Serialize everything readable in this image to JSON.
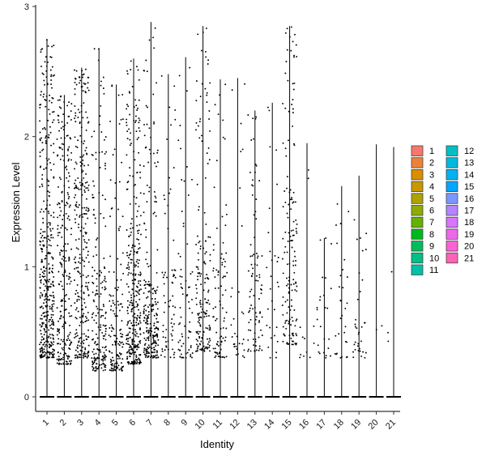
{
  "chart_data": {
    "type": "violin",
    "xlabel": "Identity",
    "ylabel": "Expression Level",
    "ylim": [
      0,
      3
    ],
    "yticks": [
      0,
      1,
      2,
      3
    ],
    "categories": [
      "1",
      "2",
      "3",
      "4",
      "5",
      "6",
      "7",
      "8",
      "9",
      "10",
      "11",
      "12",
      "13",
      "14",
      "15",
      "16",
      "17",
      "18",
      "19",
      "20",
      "21"
    ],
    "max_values": [
      2.75,
      2.32,
      2.53,
      2.68,
      2.4,
      2.6,
      2.88,
      2.48,
      2.61,
      2.85,
      2.44,
      2.45,
      2.2,
      2.26,
      2.85,
      1.95,
      1.22,
      1.62,
      1.7,
      1.94,
      1.92
    ],
    "dense_range": [
      [
        0.3,
        1.4
      ],
      [
        0.25,
        1.6
      ],
      [
        0.3,
        1.7
      ],
      [
        0.2,
        1.0
      ],
      [
        0.2,
        0.8
      ],
      [
        0.25,
        1.2
      ],
      [
        0.3,
        0.9
      ],
      [
        0.3,
        1.0
      ],
      [
        0.3,
        0.9
      ],
      [
        0.35,
        1.3
      ],
      [
        0.3,
        1.2
      ],
      [
        0.3,
        1.0
      ],
      [
        0.35,
        1.2
      ],
      [
        0.3,
        1.2
      ],
      [
        0.4,
        1.6
      ],
      [
        0.3,
        1.0
      ],
      [
        0.3,
        0.9
      ],
      [
        0.3,
        0.9
      ],
      [
        0.3,
        0.6
      ],
      [
        0.5,
        0.6
      ],
      [
        0.3,
        0.5
      ]
    ],
    "points_per_group": [
      420,
      260,
      300,
      200,
      140,
      340,
      240,
      70,
      70,
      170,
      90,
      30,
      90,
      30,
      150,
      12,
      25,
      30,
      35,
      2,
      3
    ],
    "legend": {
      "position": "right",
      "title": "",
      "items": [
        {
          "label": "1",
          "color": "#F8766D"
        },
        {
          "label": "2",
          "color": "#EC8239"
        },
        {
          "label": "3",
          "color": "#DB8E00"
        },
        {
          "label": "4",
          "color": "#C69900"
        },
        {
          "label": "5",
          "color": "#AEA200"
        },
        {
          "label": "6",
          "color": "#8FAA00"
        },
        {
          "label": "7",
          "color": "#64B200"
        },
        {
          "label": "8",
          "color": "#00B81B"
        },
        {
          "label": "9",
          "color": "#00BD5C"
        },
        {
          "label": "10",
          "color": "#00C085"
        },
        {
          "label": "11",
          "color": "#00C1A7"
        },
        {
          "label": "12",
          "color": "#00BFC4"
        },
        {
          "label": "13",
          "color": "#00BADE"
        },
        {
          "label": "14",
          "color": "#00B2F3"
        },
        {
          "label": "15",
          "color": "#00A6FF"
        },
        {
          "label": "16",
          "color": "#7C96FF"
        },
        {
          "label": "17",
          "color": "#B385FF"
        },
        {
          "label": "18",
          "color": "#D874FD"
        },
        {
          "label": "19",
          "color": "#EF67EB"
        },
        {
          "label": "20",
          "color": "#FD61D3"
        },
        {
          "label": "21",
          "color": "#FF63B6"
        }
      ]
    },
    "grid": false
  }
}
